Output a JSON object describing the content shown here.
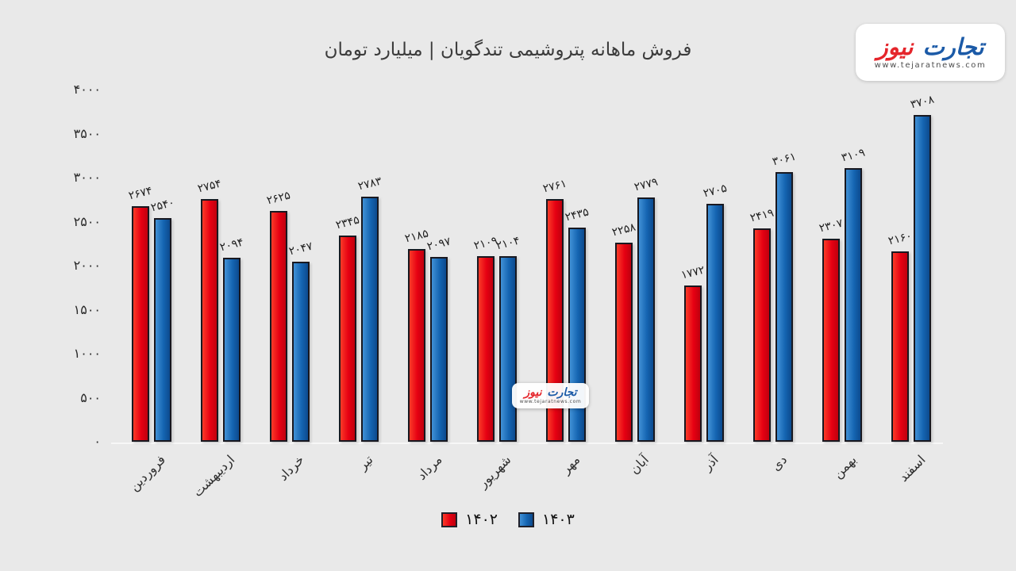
{
  "logo": {
    "word_first": "تجارت",
    "word_second": "نیوز",
    "url": "www.tejaratnews.com",
    "blue": "#1b5aa7",
    "red": "#e5252b"
  },
  "chart_data": {
    "type": "bar",
    "title": "فروش ماهانه پتروشیمی تندگویان | میلیارد تومان",
    "xlabel": "",
    "ylabel": "",
    "digit_style": "persian",
    "categories": [
      "فروردین",
      "اردیبهشت",
      "خرداد",
      "تیر",
      "مرداد",
      "شهریور",
      "مهر",
      "آبان",
      "آذر",
      "دی",
      "بهمن",
      "اسفند"
    ],
    "series": [
      {
        "name": "۱۴۰۲",
        "year": 1402,
        "color": "#e60012",
        "color_light": "#fa3b28",
        "color_dark": "#bf000e",
        "values": [
          2674,
          2754,
          2625,
          2345,
          2185,
          2109,
          2761,
          2258,
          1772,
          2419,
          2307,
          2160
        ]
      },
      {
        "name": "۱۴۰۳",
        "year": 1403,
        "color": "#1565b2",
        "color_light": "#4191d6",
        "color_dark": "#0c4a8e",
        "values": [
          2540,
          2094,
          2047,
          2783,
          2097,
          2104,
          2435,
          2779,
          2705,
          3061,
          3109,
          3708
        ]
      }
    ],
    "ylim": [
      0,
      4000
    ],
    "yticks": [
      0,
      500,
      1000,
      1500,
      2000,
      2500,
      3000,
      3500,
      4000
    ],
    "grid": false,
    "legend_position": "bottom",
    "background": "#e9e9e9"
  }
}
